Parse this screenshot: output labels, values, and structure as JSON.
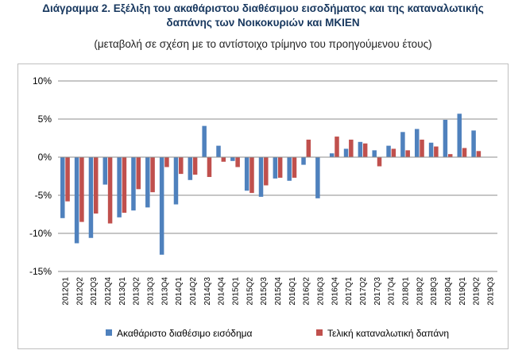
{
  "title_line1": "Διάγραμμα 2. Εξέλιξη του ακαθάριστου διαθέσιμου εισοδήματος και της καταναλωτικής",
  "title_line2": "δαπάνης των Νοικοκυριών και ΜΚΙΕΝ",
  "subtitle": "(μεταβολή σε σχέση με το αντίστοιχο τρίμηνο του προηγούμενου έτους)",
  "chart_data": {
    "type": "bar",
    "title": "Διάγραμμα 2. Εξέλιξη του ακαθάριστου διαθέσιμου εισοδήματος και της καταναλωτικής δαπάνης των Νοικοκυριών και ΜΚΙΕΝ",
    "subtitle": "(μεταβολή σε σχέση με το αντίστοιχο τρίμηνο του προηγούμενου έτους)",
    "xlabel": "",
    "ylabel": "",
    "ylim": [
      -15,
      10
    ],
    "yticks": [
      -15,
      -10,
      -5,
      0,
      5,
      10
    ],
    "ytick_labels": [
      "-15%",
      "-10%",
      "-5%",
      "0%",
      "5%",
      "10%"
    ],
    "grid": true,
    "legend_position": "bottom",
    "categories": [
      "2012Q1",
      "2012Q2",
      "2012Q3",
      "2012Q4",
      "2013Q1",
      "2013Q2",
      "2013Q3",
      "2013Q4",
      "2014Q1",
      "2014Q2",
      "2014Q3",
      "2014Q4",
      "2015Q1",
      "2015Q2",
      "2015Q3",
      "2015Q4",
      "2016Q1",
      "2016Q2",
      "2016Q3",
      "2016Q4",
      "2017Q1",
      "2017Q2",
      "2017Q3",
      "2017Q4",
      "2018Q1",
      "2018Q2",
      "2018Q3",
      "2018Q4",
      "2019Q1",
      "2019Q2",
      "2019Q3"
    ],
    "series": [
      {
        "name": "Ακαθάριστο διαθέσιμο εισόδημα",
        "color": "#4f81bd",
        "values": [
          -8.0,
          -11.3,
          -10.6,
          -3.6,
          -7.9,
          -7.0,
          -6.6,
          -12.8,
          -6.2,
          -3.0,
          4.1,
          1.5,
          -0.5,
          -4.4,
          -5.2,
          -2.8,
          -3.1,
          -1.0,
          -5.4,
          0.5,
          1.1,
          2.0,
          0.9,
          1.5,
          3.3,
          3.7,
          1.9,
          4.9,
          5.7,
          3.5,
          0
        ]
      },
      {
        "name": "Τελική καταναλωτική δαπάνη",
        "color": "#c0504d",
        "values": [
          -5.8,
          -8.5,
          -7.4,
          -8.7,
          -7.3,
          -4.2,
          -4.6,
          -1.3,
          -2.2,
          -2.3,
          -2.6,
          -0.6,
          -1.3,
          -4.7,
          -3.7,
          -2.7,
          -2.7,
          2.3,
          0,
          2.7,
          2.3,
          1.8,
          -1.2,
          1.1,
          0.9,
          2.3,
          1.4,
          0.4,
          1.2,
          0.8,
          0
        ]
      }
    ]
  }
}
